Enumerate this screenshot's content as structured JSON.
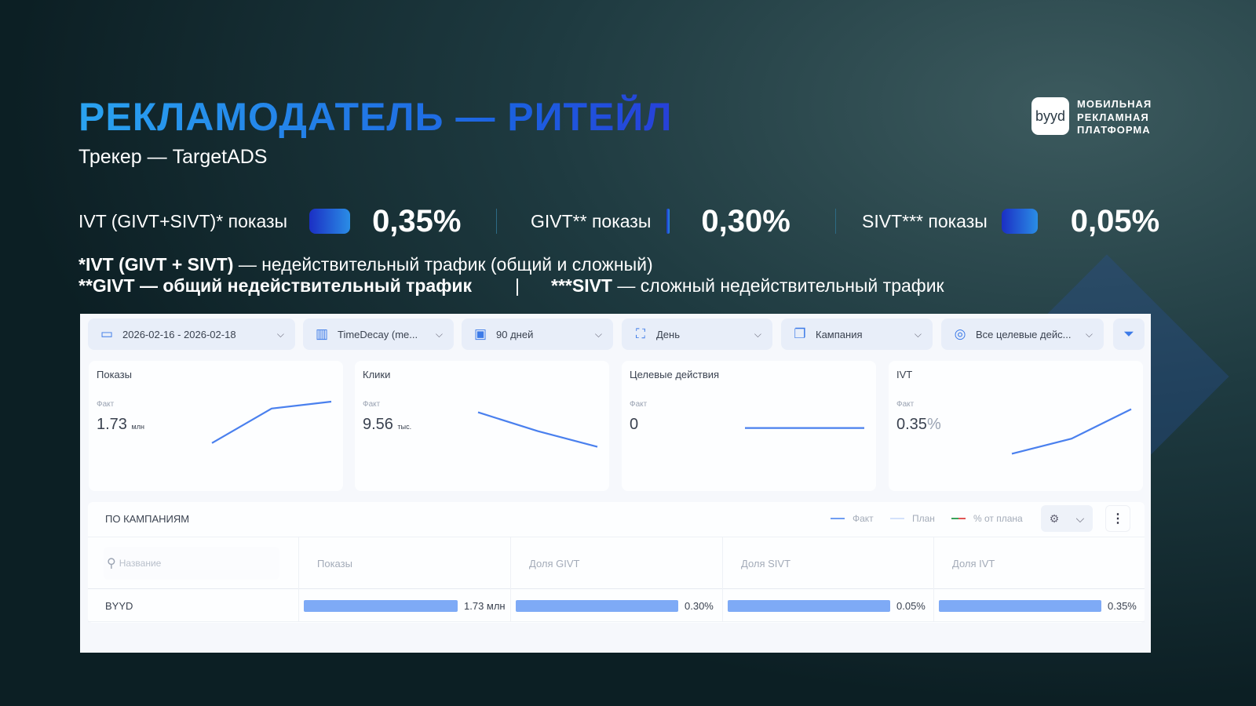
{
  "header": {
    "title": "РЕКЛАМОДАТЕЛЬ — РИТЕЙЛ",
    "subtitle": "Трекер — TargetADS",
    "logo": {
      "mark": "byyd",
      "text": [
        "МОБИЛЬНАЯ",
        "РЕКЛАМНАЯ",
        "ПЛАТФОРМА"
      ]
    }
  },
  "metrics": [
    {
      "label": "IVT (GIVT+SIVT)* показы",
      "value": "0,35%"
    },
    {
      "label": "GIVT** показы",
      "value": "0,30%"
    },
    {
      "label": "SIVT*** показы",
      "value": "0,05%"
    }
  ],
  "notes": {
    "line1_bold": "*IVT (GIVT + SIVT)",
    "line1_rest": " — недействительный трафик (общий и сложный)",
    "line2_bold": "**GIVT — общий недействительный трафик",
    "line2_sep": "|",
    "line3_bold": "***SIVT",
    "line3_rest": " — сложный недействительный трафик"
  },
  "filters": [
    {
      "icon": "calendar-icon",
      "label": "2026-02-16 - 2026-02-18"
    },
    {
      "icon": "bar-chart-icon",
      "label": "TimeDecay (me..."
    },
    {
      "icon": "period-icon",
      "label": "90 дней"
    },
    {
      "icon": "granularity-icon",
      "label": "День"
    },
    {
      "icon": "campaign-icon",
      "label": "Кампания"
    },
    {
      "icon": "target-icon",
      "label": "Все целевые дейс..."
    }
  ],
  "cards": [
    {
      "title": "Показы",
      "fact_label": "Факт",
      "value": "1.73",
      "unit": "млн",
      "trend": [
        0.19,
        0.74,
        0.85
      ]
    },
    {
      "title": "Клики",
      "fact_label": "Факт",
      "value": "9.56",
      "unit": "тыс.",
      "trend": [
        0.68,
        0.38,
        0.13
      ]
    },
    {
      "title": "Целевые действия",
      "fact_label": "Факт",
      "value": "0",
      "unit": "",
      "trend": [
        0.43,
        0.43,
        0.43
      ]
    },
    {
      "title": "IVT",
      "fact_label": "Факт",
      "value": "0.35",
      "unit": "%",
      "trend": [
        0.02,
        0.26,
        0.73
      ]
    }
  ],
  "campaigns": {
    "title": "ПО КАМПАНИЯМ",
    "legend": [
      {
        "label": "Факт",
        "color": "#6f9df2"
      },
      {
        "label": "План",
        "color": "#d4e2fb"
      },
      {
        "label": "% от плана",
        "color": "#3aa35a"
      }
    ],
    "search_placeholder": "Название",
    "columns": [
      "Показы",
      "Доля GIVT",
      "Доля SIVT",
      "Доля IVT"
    ],
    "rows": [
      {
        "name": "BYYD",
        "cells": [
          {
            "value": "1.73 млн",
            "fill": 1
          },
          {
            "value": "0.30%",
            "fill": 1
          },
          {
            "value": "0.05%",
            "fill": 1
          },
          {
            "value": "0.35%",
            "fill": 1
          }
        ]
      }
    ]
  },
  "colors": {
    "accent": "#3d7be8",
    "bar": "#7eaaf6",
    "line": "#4a80ee"
  }
}
